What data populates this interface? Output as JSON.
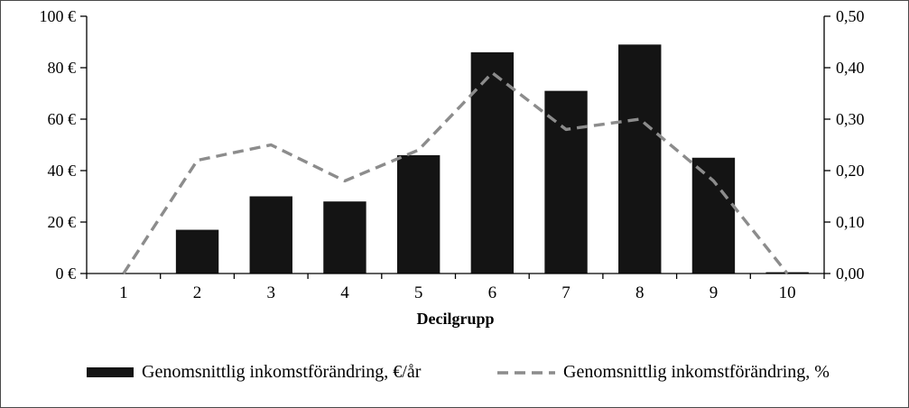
{
  "chart_data": {
    "type": "bar+line combo",
    "categories": [
      "1",
      "2",
      "3",
      "4",
      "5",
      "6",
      "7",
      "8",
      "9",
      "10"
    ],
    "series": [
      {
        "name": "Genomsnittlig inkomstförändring, €/år",
        "type": "bar",
        "axis": "left",
        "color": "#141414",
        "values": [
          0,
          17,
          30,
          28,
          46,
          86,
          71,
          89,
          45,
          0.5
        ]
      },
      {
        "name": "Genomsnittlig inkomstförändring, %",
        "type": "line",
        "axis": "right",
        "color": "#8c8c8c",
        "dashed": true,
        "values": [
          0.0,
          0.22,
          0.25,
          0.18,
          0.24,
          0.39,
          0.28,
          0.3,
          0.18,
          0.0
        ]
      }
    ],
    "title": "",
    "xlabel": "Decilgrupp",
    "left_axis": {
      "min": 0,
      "max": 100,
      "step": 20,
      "tick_labels": [
        "0 €",
        "20 €",
        "40 €",
        "60 €",
        "80 €",
        "100 €"
      ]
    },
    "right_axis": {
      "min": 0,
      "max": 0.5,
      "step": 0.1,
      "tick_labels": [
        "0,00",
        "0,10",
        "0,20",
        "0,30",
        "0,40",
        "0,50"
      ]
    },
    "grid": false,
    "legend_position": "bottom"
  }
}
